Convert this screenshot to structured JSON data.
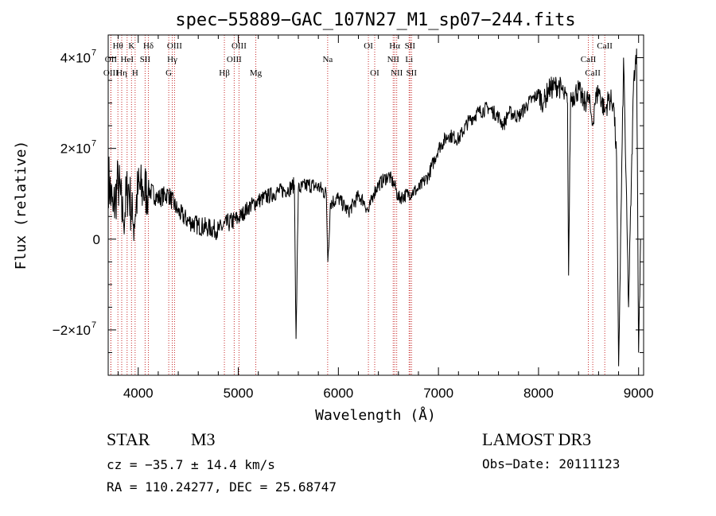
{
  "chart_data": {
    "type": "line",
    "title": "spec−55889−GAC_107N27_M1_sp07−244.fits",
    "xlabel": "Wavelength (Å)",
    "ylabel": "Flux (relative)",
    "xlim": [
      3700,
      9050
    ],
    "ylim": [
      -30000000,
      45000000
    ],
    "x_ticks": [
      4000,
      5000,
      6000,
      7000,
      8000,
      9000
    ],
    "x_tick_labels": [
      "4000",
      "5000",
      "6000",
      "7000",
      "8000",
      "9000"
    ],
    "y_ticks": [
      -20000000,
      0,
      20000000,
      40000000
    ],
    "y_tick_labels": [
      "−2×10",
      "0",
      "2×10",
      "4×10"
    ],
    "y_tick_exponent": "7",
    "series": [
      {
        "name": "spectrum",
        "x": [
          3700,
          3750,
          3800,
          3850,
          3900,
          3950,
          4000,
          4050,
          4100,
          4200,
          4300,
          4400,
          4500,
          4600,
          4700,
          4800,
          4900,
          5000,
          5100,
          5200,
          5300,
          5400,
          5500,
          5560,
          5577,
          5600,
          5700,
          5800,
          5880,
          5895,
          5920,
          6000,
          6100,
          6200,
          6250,
          6300,
          6350,
          6400,
          6500,
          6560,
          6600,
          6700,
          6800,
          6900,
          7000,
          7100,
          7200,
          7300,
          7400,
          7500,
          7600,
          7650,
          7700,
          7800,
          7900,
          8000,
          8050,
          8100,
          8200,
          8250,
          8290,
          8300,
          8320,
          8400,
          8450,
          8500,
          8530,
          8542,
          8560,
          8600,
          8662,
          8700,
          8750,
          8780,
          8800,
          8850,
          8900,
          8950,
          8980,
          9000,
          9020
        ],
        "y": [
          14000000,
          6000000,
          13000000,
          4000000,
          12000000,
          3000000,
          11000000,
          10500000,
          11000000,
          9000000,
          10000000,
          6000000,
          4000000,
          3000000,
          2500000,
          2000000,
          3500000,
          4500000,
          7000000,
          8500000,
          9500000,
          10500000,
          11000000,
          12000000,
          -22000000,
          11000000,
          12000000,
          11500000,
          10000000,
          -5000000,
          8000000,
          9000000,
          6000000,
          9500000,
          8500000,
          6000000,
          10000000,
          12000000,
          14000000,
          12000000,
          9000000,
          10000000,
          11000000,
          14000000,
          20000000,
          23000000,
          22000000,
          26000000,
          28000000,
          29000000,
          27000000,
          25000000,
          28000000,
          27000000,
          30000000,
          32000000,
          30000000,
          33000000,
          34000000,
          32000000,
          30000000,
          -8000000,
          31000000,
          33000000,
          30000000,
          31000000,
          27000000,
          25000000,
          30000000,
          33000000,
          28000000,
          31000000,
          30000000,
          18000000,
          -28000000,
          40000000,
          -15000000,
          35000000,
          42000000,
          -25000000,
          0
        ]
      }
    ],
    "line_labels": [
      {
        "name": "Hθ",
        "x": 3797,
        "row": 1
      },
      {
        "name": "OII",
        "x": 3727,
        "row": 2
      },
      {
        "name": "OIII",
        "x": 3727,
        "row": 3
      },
      {
        "name": "Hη",
        "x": 3835,
        "row": 3
      },
      {
        "name": "HeI",
        "x": 3889,
        "row": 2
      },
      {
        "name": "K",
        "x": 3933,
        "row": 1
      },
      {
        "name": "SII",
        "x": 4069,
        "row": 2
      },
      {
        "name": "H",
        "x": 3969,
        "row": 3
      },
      {
        "name": "Hδ",
        "x": 4102,
        "row": 1
      },
      {
        "name": "OIII",
        "x": 4363,
        "row": 1
      },
      {
        "name": "Hγ",
        "x": 4340,
        "row": 2
      },
      {
        "name": "G",
        "x": 4305,
        "row": 3
      },
      {
        "name": "OIII",
        "x": 5007,
        "row": 1
      },
      {
        "name": "OIII",
        "x": 4959,
        "row": 2
      },
      {
        "name": "Hβ",
        "x": 4861,
        "row": 3
      },
      {
        "name": "Mg",
        "x": 5175,
        "row": 3
      },
      {
        "name": "Na",
        "x": 5893,
        "row": 2
      },
      {
        "name": "OI",
        "x": 6300,
        "row": 1
      },
      {
        "name": "OI",
        "x": 6363,
        "row": 3
      },
      {
        "name": "Hα",
        "x": 6563,
        "row": 1
      },
      {
        "name": "SII",
        "x": 6716,
        "row": 1
      },
      {
        "name": "NII",
        "x": 6548,
        "row": 2
      },
      {
        "name": "Li",
        "x": 6707,
        "row": 2
      },
      {
        "name": "NII",
        "x": 6583,
        "row": 3
      },
      {
        "name": "SII",
        "x": 6731,
        "row": 3
      },
      {
        "name": "CaII",
        "x": 8662,
        "row": 1
      },
      {
        "name": "CaII",
        "x": 8498,
        "row": 2
      },
      {
        "name": "CaII",
        "x": 8542,
        "row": 3
      }
    ]
  },
  "info": {
    "object_class": "STAR",
    "subclass": "M3",
    "survey": "LAMOST DR3",
    "redshift": "cz = −35.7 ± 14.4 km/s",
    "obs_date": "Obs−Date: 20111123",
    "coords": "RA = 110.24277, DEC =  25.68747"
  }
}
